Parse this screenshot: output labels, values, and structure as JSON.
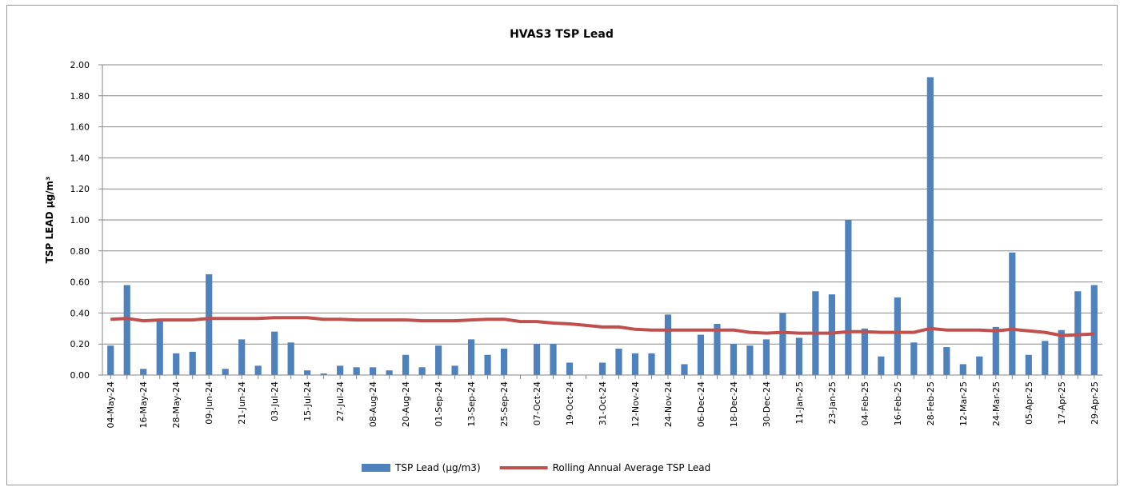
{
  "chart_data": {
    "type": "bar_line",
    "title": "HVAS3 TSP Lead",
    "y_label": "TSP LEAD µg/m³",
    "categories": [
      "04-May-24",
      null,
      "16-May-24",
      null,
      "28-May-24",
      null,
      "09-Jun-24",
      null,
      "21-Jun-24",
      null,
      "03-Jul-24",
      null,
      "15-Jul-24",
      null,
      "27-Jul-24",
      null,
      "08-Aug-24",
      null,
      "20-Aug-24",
      null,
      "01-Sep-24",
      null,
      "13-Sep-24",
      null,
      "25-Sep-24",
      null,
      "07-Oct-24",
      null,
      "19-Oct-24",
      null,
      "31-Oct-24",
      null,
      "12-Nov-24",
      null,
      "24-Nov-24",
      null,
      "06-Dec-24",
      null,
      "18-Dec-24",
      null,
      "30-Dec-24",
      null,
      "11-Jan-25",
      null,
      "23-Jan-25",
      null,
      "04-Feb-25",
      null,
      "16-Feb-25",
      null,
      "28-Feb-25",
      null,
      "12-Mar-25",
      null,
      "24-Mar-25",
      null,
      "05-Apr-25",
      null,
      "17-Apr-25",
      null,
      "29-Apr-25"
    ],
    "series": [
      {
        "name": "TSP Lead  (µg/m3)",
        "type": "bar",
        "color": "#4f81bd",
        "values": [
          0.19,
          0.58,
          0.04,
          0.35,
          0.14,
          0.15,
          0.65,
          0.04,
          0.23,
          0.06,
          0.28,
          0.21,
          0.03,
          0.01,
          0.06,
          0.05,
          0.05,
          0.03,
          0.13,
          0.05,
          0.19,
          0.06,
          0.23,
          0.13,
          0.17,
          null,
          0.2,
          0.2,
          0.08,
          null,
          0.08,
          0.17,
          0.14,
          0.14,
          0.39,
          0.07,
          0.26,
          0.33,
          0.2,
          0.19,
          0.23,
          0.4,
          0.24,
          0.54,
          0.52,
          1.0,
          0.3,
          0.12,
          0.5,
          0.21,
          1.92,
          0.18,
          0.07,
          0.12,
          0.31,
          0.79,
          0.13,
          0.22,
          0.29,
          0.54,
          0.58
        ]
      },
      {
        "name": "Rolling Annual Average TSP Lead",
        "type": "line",
        "color": "#c0504d",
        "values": [
          0.36,
          0.365,
          0.35,
          0.355,
          0.355,
          0.355,
          0.365,
          0.365,
          0.365,
          0.365,
          0.37,
          0.37,
          0.37,
          0.36,
          0.36,
          0.355,
          0.355,
          0.355,
          0.355,
          0.35,
          0.35,
          0.35,
          0.355,
          0.36,
          0.36,
          0.345,
          0.345,
          0.335,
          0.33,
          0.32,
          0.31,
          0.31,
          0.295,
          0.29,
          0.29,
          0.29,
          0.29,
          0.29,
          0.29,
          0.275,
          0.27,
          0.275,
          0.27,
          0.27,
          0.27,
          0.28,
          0.28,
          0.275,
          0.275,
          0.275,
          0.3,
          0.29,
          0.29,
          0.29,
          0.285,
          0.295,
          0.285,
          0.275,
          0.255,
          0.26,
          0.265
        ]
      }
    ],
    "ylim": [
      0,
      2
    ],
    "yticks": [
      {
        "value": 0,
        "label": "0.00"
      },
      {
        "value": 0.2,
        "label": "0.20"
      },
      {
        "value": 0.4,
        "label": "0.40"
      },
      {
        "value": 0.6,
        "label": "0.60"
      },
      {
        "value": 0.8,
        "label": "0.80"
      },
      {
        "value": 1,
        "label": "1.00"
      },
      {
        "value": 1.2,
        "label": "1.20"
      },
      {
        "value": 1.4,
        "label": "1.40"
      },
      {
        "value": 1.6,
        "label": "1.60"
      },
      {
        "value": 1.8,
        "label": "1.80"
      },
      {
        "value": 2,
        "label": "2.00"
      }
    ],
    "grid": true,
    "legend": "bottom"
  }
}
